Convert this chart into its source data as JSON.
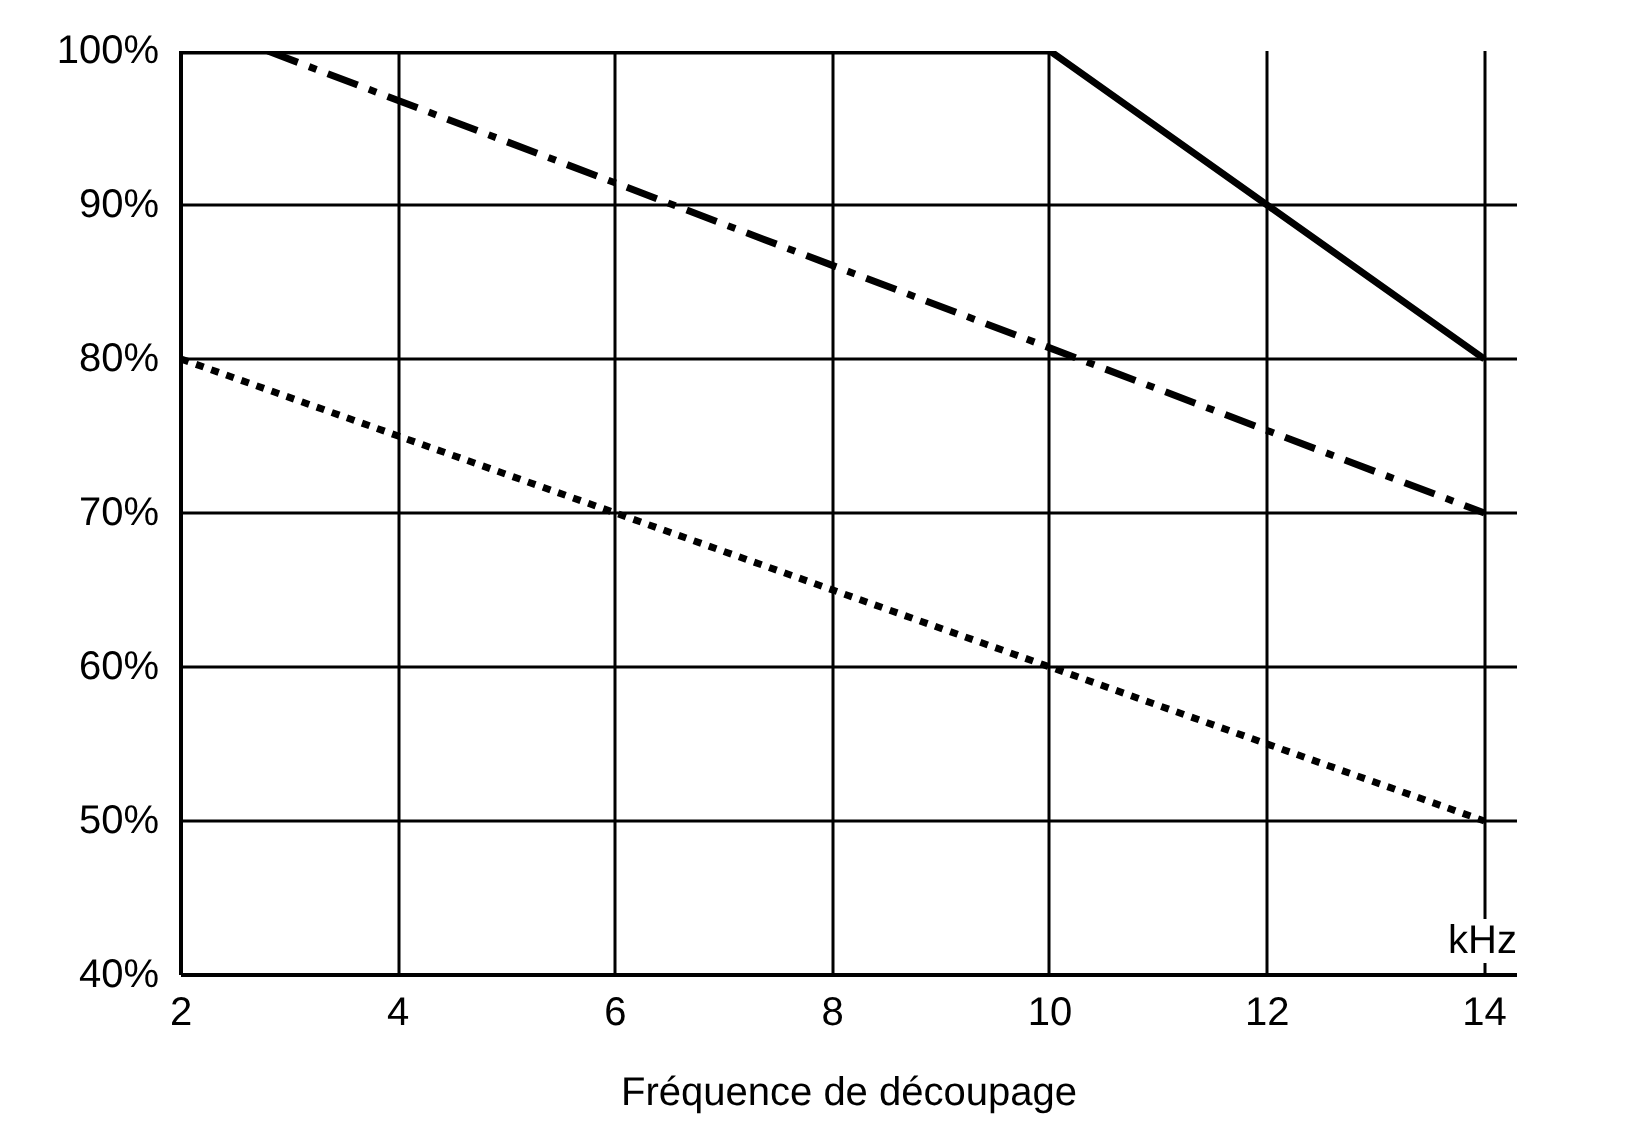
{
  "chart_data": {
    "type": "line",
    "xlabel": "Fréquence de découpage",
    "series": [
      {
        "color": "#000000",
        "line_style": "solid",
        "x": [
          2,
          10,
          14
        ],
        "values": [
          100,
          100,
          80
        ]
      },
      {
        "color": "#000000",
        "line_style": "dashdot",
        "x": [
          2.8,
          14
        ],
        "values": [
          100,
          70
        ]
      },
      {
        "color": "#000000",
        "line_style": "dotted",
        "x": [
          2,
          14
        ],
        "values": [
          80,
          50
        ]
      }
    ],
    "xlim": [
      2,
      14.3
    ],
    "ylim": [
      40,
      100
    ],
    "xticks": [
      2,
      4,
      6,
      8,
      10,
      12,
      14
    ],
    "yticks": [
      {
        "value": 40,
        "label": "40%"
      },
      {
        "value": 50,
        "label": "50%"
      },
      {
        "value": 60,
        "label": "60%"
      },
      {
        "value": 70,
        "label": "70%"
      },
      {
        "value": 80,
        "label": "80%"
      },
      {
        "value": 90,
        "label": "90%"
      },
      {
        "value": 100,
        "label": "100%"
      }
    ],
    "annotations": [
      "kHz"
    ],
    "grid": true
  }
}
